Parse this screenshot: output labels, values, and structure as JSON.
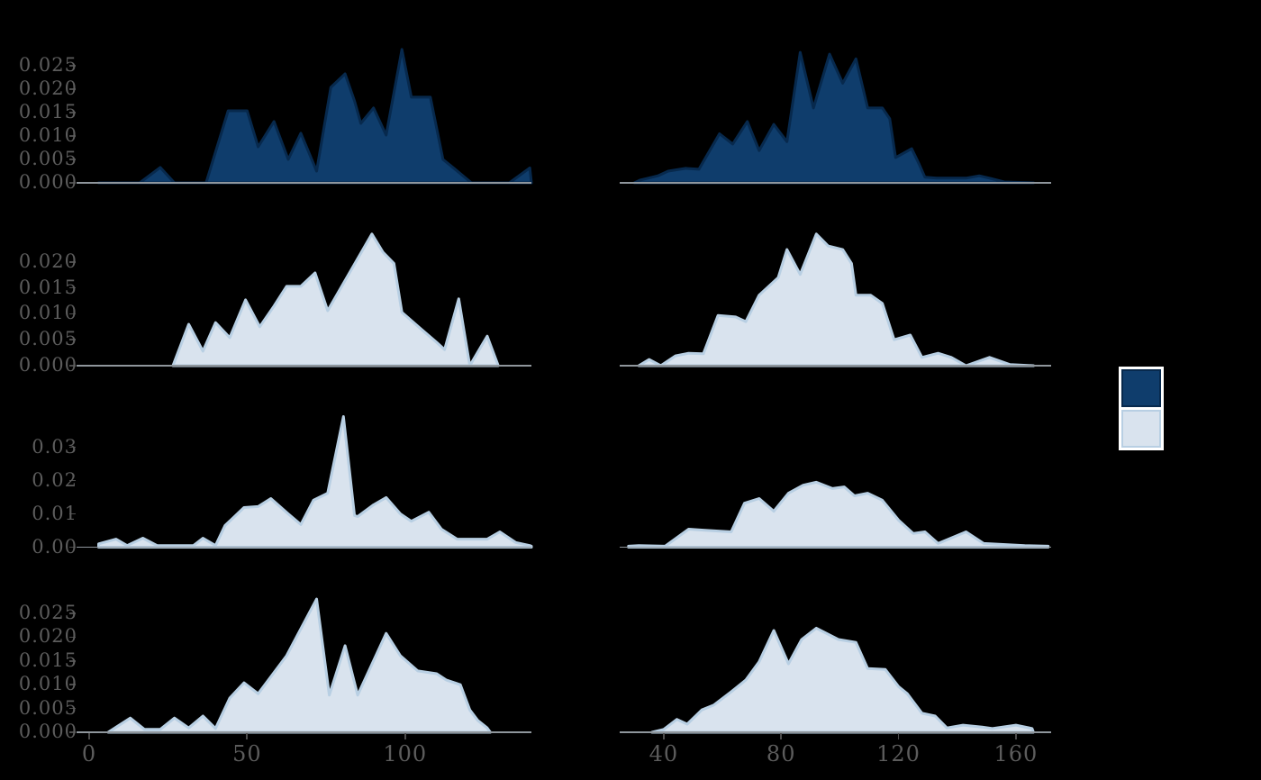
{
  "figure": {
    "background": "#000000"
  },
  "colors": {
    "dark_fill": "#0f3d6c",
    "dark_edge": "#07294d",
    "light_fill": "#d9e3ee",
    "light_edge": "#b8cfe3",
    "spine": "#8f969c",
    "tick": "#4c4c4c",
    "label": "#5c5c5c",
    "legend_edge": "#ffffff"
  },
  "legend": {
    "entries": [
      {
        "label": "",
        "color_group": "dark"
      },
      {
        "label": "",
        "color_group": "light"
      }
    ]
  },
  "chart_data": {
    "type": "area",
    "title": "",
    "xlabel": "",
    "ylabel": "",
    "grid": "off",
    "layout": "4 rows x 2 columns of density area plots; shared x-axis per column, y tick labels on left column only; legend of two color groups at right",
    "columns": [
      {
        "xlim": [
          -4,
          140
        ],
        "xticks": [
          0,
          50,
          100
        ],
        "xtick_labels": [
          "0",
          "50",
          "100"
        ]
      },
      {
        "xlim": [
          25,
          172
        ],
        "xticks": [
          40,
          80,
          120,
          160
        ],
        "xtick_labels": [
          "40",
          "80",
          "120",
          "160"
        ]
      }
    ],
    "rows": [
      {
        "ylim": [
          0,
          0.0308
        ],
        "ytick_labels": [
          "0.000",
          "0.005",
          "0.010",
          "0.015",
          "0.020",
          "0.025"
        ],
        "color_group": "dark"
      },
      {
        "ylim": [
          0,
          0.0278
        ],
        "ytick_labels": [
          "0.000",
          "0.005",
          "0.010",
          "0.015",
          "0.020"
        ],
        "color_group": "light"
      },
      {
        "ylim": [
          0,
          0.0434
        ],
        "ytick_labels": [
          "0.00",
          "0.01",
          "0.02",
          "0.03"
        ],
        "color_group": "light"
      },
      {
        "ylim": [
          0,
          0.0303
        ],
        "ytick_labels": [
          "0.000",
          "0.005",
          "0.010",
          "0.015",
          "0.020",
          "0.025"
        ],
        "color_group": "light"
      }
    ],
    "series": [
      {
        "row": 0,
        "col": 0,
        "color_group": "dark",
        "points": [
          [
            3,
            0
          ],
          [
            16,
            0
          ],
          [
            22.5,
            0.0033
          ],
          [
            27,
            0
          ],
          [
            37,
            0
          ],
          [
            44,
            0.0154
          ],
          [
            50,
            0.0154
          ],
          [
            53.5,
            0.0077
          ],
          [
            58.5,
            0.0131
          ],
          [
            63,
            0.005
          ],
          [
            67,
            0.0106
          ],
          [
            72,
            0.0025
          ],
          [
            76.5,
            0.0204
          ],
          [
            81,
            0.0233
          ],
          [
            84,
            0.0175
          ],
          [
            86,
            0.0127
          ],
          [
            90,
            0.016
          ],
          [
            94,
            0.0102
          ],
          [
            99,
            0.0285
          ],
          [
            102,
            0.0183
          ],
          [
            108,
            0.0183
          ],
          [
            112,
            0.005
          ],
          [
            115.5,
            0.0031
          ],
          [
            121,
            0
          ],
          [
            133,
            0
          ],
          [
            139.5,
            0.0032
          ],
          [
            140,
            0
          ]
        ]
      },
      {
        "row": 0,
        "col": 1,
        "color_group": "dark",
        "points": [
          [
            30,
            0
          ],
          [
            32,
            0.0006
          ],
          [
            38,
            0.0015
          ],
          [
            41.5,
            0.0025
          ],
          [
            47.5,
            0.0031
          ],
          [
            52,
            0.0029
          ],
          [
            59,
            0.0105
          ],
          [
            63.5,
            0.0083
          ],
          [
            68.5,
            0.0131
          ],
          [
            72.5,
            0.0069
          ],
          [
            77.5,
            0.0125
          ],
          [
            82,
            0.0088
          ],
          [
            86.5,
            0.0279
          ],
          [
            91,
            0.016
          ],
          [
            96.5,
            0.0275
          ],
          [
            101,
            0.0213
          ],
          [
            105.5,
            0.0265
          ],
          [
            109.5,
            0.016
          ],
          [
            114.5,
            0.016
          ],
          [
            117,
            0.0137
          ],
          [
            119,
            0.0054
          ],
          [
            124.5,
            0.0073
          ],
          [
            127,
            0.004
          ],
          [
            129,
            0.0012
          ],
          [
            133,
            0.001
          ],
          [
            143,
            0.001
          ],
          [
            147.5,
            0.0015
          ],
          [
            151,
            0.001
          ],
          [
            156,
            0.0002
          ],
          [
            166,
            0
          ]
        ]
      },
      {
        "row": 1,
        "col": 0,
        "color_group": "light",
        "points": [
          [
            26.5,
            0
          ],
          [
            31.5,
            0.008
          ],
          [
            36,
            0.0028
          ],
          [
            40,
            0.0083
          ],
          [
            44.5,
            0.0054
          ],
          [
            49.5,
            0.0127
          ],
          [
            54,
            0.0075
          ],
          [
            58.5,
            0.0115
          ],
          [
            62.5,
            0.0153
          ],
          [
            67,
            0.0153
          ],
          [
            71.5,
            0.0179
          ],
          [
            75.5,
            0.0106
          ],
          [
            89.5,
            0.0254
          ],
          [
            93,
            0.0219
          ],
          [
            96.5,
            0.0197
          ],
          [
            99,
            0.0103
          ],
          [
            105,
            0.0071
          ],
          [
            110,
            0.0045
          ],
          [
            112.5,
            0.0031
          ],
          [
            117,
            0.0129
          ],
          [
            120.5,
            0
          ],
          [
            126,
            0.0057
          ],
          [
            129.5,
            0
          ]
        ]
      },
      {
        "row": 1,
        "col": 1,
        "color_group": "light",
        "points": [
          [
            31.5,
            0
          ],
          [
            35,
            0.0012
          ],
          [
            39,
            0
          ],
          [
            44,
            0.0019
          ],
          [
            48.5,
            0.0024
          ],
          [
            53.5,
            0.0023
          ],
          [
            58.5,
            0.0097
          ],
          [
            64.5,
            0.0094
          ],
          [
            68,
            0.0085
          ],
          [
            72.5,
            0.0136
          ],
          [
            79,
            0.017
          ],
          [
            82,
            0.0224
          ],
          [
            86.5,
            0.0176
          ],
          [
            92,
            0.0254
          ],
          [
            96,
            0.0231
          ],
          [
            101,
            0.0224
          ],
          [
            104,
            0.0197
          ],
          [
            105.5,
            0.0136
          ],
          [
            110.5,
            0.0136
          ],
          [
            114.5,
            0.012
          ],
          [
            118.5,
            0.005
          ],
          [
            124,
            0.0059
          ],
          [
            128,
            0.0016
          ],
          [
            133.5,
            0.0024
          ],
          [
            138,
            0.0016
          ],
          [
            143,
            0
          ],
          [
            151,
            0.0016
          ],
          [
            158,
            0.0002
          ],
          [
            166,
            0
          ]
        ]
      },
      {
        "row": 2,
        "col": 0,
        "color_group": "light",
        "points": [
          [
            3,
            0.001
          ],
          [
            8.5,
            0.0024
          ],
          [
            12,
            0.0005
          ],
          [
            17,
            0.0027
          ],
          [
            21.5,
            0.0005
          ],
          [
            33,
            0.0005
          ],
          [
            36,
            0.0027
          ],
          [
            40,
            0.0005
          ],
          [
            43,
            0.0065
          ],
          [
            49,
            0.0119
          ],
          [
            53.5,
            0.0122
          ],
          [
            57.5,
            0.0146
          ],
          [
            63,
            0.01
          ],
          [
            67,
            0.0068
          ],
          [
            71,
            0.0141
          ],
          [
            75.5,
            0.0162
          ],
          [
            80.5,
            0.0392
          ],
          [
            84,
            0.0095
          ],
          [
            85,
            0.0092
          ],
          [
            90,
            0.0127
          ],
          [
            94,
            0.0149
          ],
          [
            98.5,
            0.01
          ],
          [
            102,
            0.0078
          ],
          [
            107.5,
            0.0105
          ],
          [
            111.5,
            0.0054
          ],
          [
            116.5,
            0.0024
          ],
          [
            126,
            0.0024
          ],
          [
            130,
            0.0046
          ],
          [
            135,
            0.0014
          ],
          [
            139.5,
            0.0005
          ],
          [
            140,
            0.0003
          ]
        ]
      },
      {
        "row": 2,
        "col": 1,
        "color_group": "light",
        "points": [
          [
            28,
            0.0003
          ],
          [
            31.5,
            0.0005
          ],
          [
            40.5,
            0.0003
          ],
          [
            48.5,
            0.0054
          ],
          [
            53.5,
            0.0051
          ],
          [
            63,
            0.0046
          ],
          [
            67.5,
            0.0132
          ],
          [
            72.5,
            0.0146
          ],
          [
            77.5,
            0.0108
          ],
          [
            82.5,
            0.0162
          ],
          [
            87.5,
            0.0186
          ],
          [
            92,
            0.0195
          ],
          [
            97.5,
            0.0176
          ],
          [
            101.5,
            0.0181
          ],
          [
            105,
            0.0154
          ],
          [
            109.5,
            0.0162
          ],
          [
            114.5,
            0.0141
          ],
          [
            120,
            0.0081
          ],
          [
            125,
            0.0041
          ],
          [
            129,
            0.0046
          ],
          [
            133.5,
            0.0011
          ],
          [
            143,
            0.0046
          ],
          [
            149,
            0.0011
          ],
          [
            163,
            0.0005
          ],
          [
            171,
            0.0003
          ]
        ]
      },
      {
        "row": 3,
        "col": 0,
        "color_group": "light",
        "points": [
          [
            6,
            0
          ],
          [
            13,
            0.003
          ],
          [
            17.5,
            0.0006
          ],
          [
            22.5,
            0.0006
          ],
          [
            27,
            0.003
          ],
          [
            31.5,
            0.0009
          ],
          [
            36,
            0.0034
          ],
          [
            40,
            0.0008
          ],
          [
            44.5,
            0.0072
          ],
          [
            49,
            0.0104
          ],
          [
            53.5,
            0.0081
          ],
          [
            62.5,
            0.0161
          ],
          [
            72,
            0.028
          ],
          [
            76,
            0.0078
          ],
          [
            81,
            0.0182
          ],
          [
            85,
            0.0078
          ],
          [
            94,
            0.0208
          ],
          [
            98.5,
            0.0161
          ],
          [
            104,
            0.0129
          ],
          [
            110,
            0.0123
          ],
          [
            113,
            0.011
          ],
          [
            117.5,
            0.01
          ],
          [
            120.5,
            0.0047
          ],
          [
            123,
            0.0025
          ],
          [
            126,
            0.0009
          ],
          [
            127,
            0
          ]
        ]
      },
      {
        "row": 3,
        "col": 1,
        "color_group": "light",
        "points": [
          [
            36,
            0
          ],
          [
            40,
            0.0006
          ],
          [
            44.5,
            0.0027
          ],
          [
            48,
            0.0017
          ],
          [
            53,
            0.0047
          ],
          [
            57,
            0.0057
          ],
          [
            63,
            0.0085
          ],
          [
            68,
            0.011
          ],
          [
            72.5,
            0.0148
          ],
          [
            77.5,
            0.0214
          ],
          [
            82.5,
            0.0144
          ],
          [
            87,
            0.0195
          ],
          [
            92,
            0.0219
          ],
          [
            99.5,
            0.0195
          ],
          [
            105.5,
            0.0189
          ],
          [
            109.5,
            0.0134
          ],
          [
            115.5,
            0.0132
          ],
          [
            120,
            0.0096
          ],
          [
            123,
            0.0081
          ],
          [
            128,
            0.004
          ],
          [
            132.5,
            0.0034
          ],
          [
            136.5,
            0.0009
          ],
          [
            142,
            0.0015
          ],
          [
            148.5,
            0.0011
          ],
          [
            152,
            0.0008
          ],
          [
            160,
            0.0015
          ],
          [
            165.5,
            0.0008
          ],
          [
            166,
            0
          ]
        ]
      }
    ]
  }
}
